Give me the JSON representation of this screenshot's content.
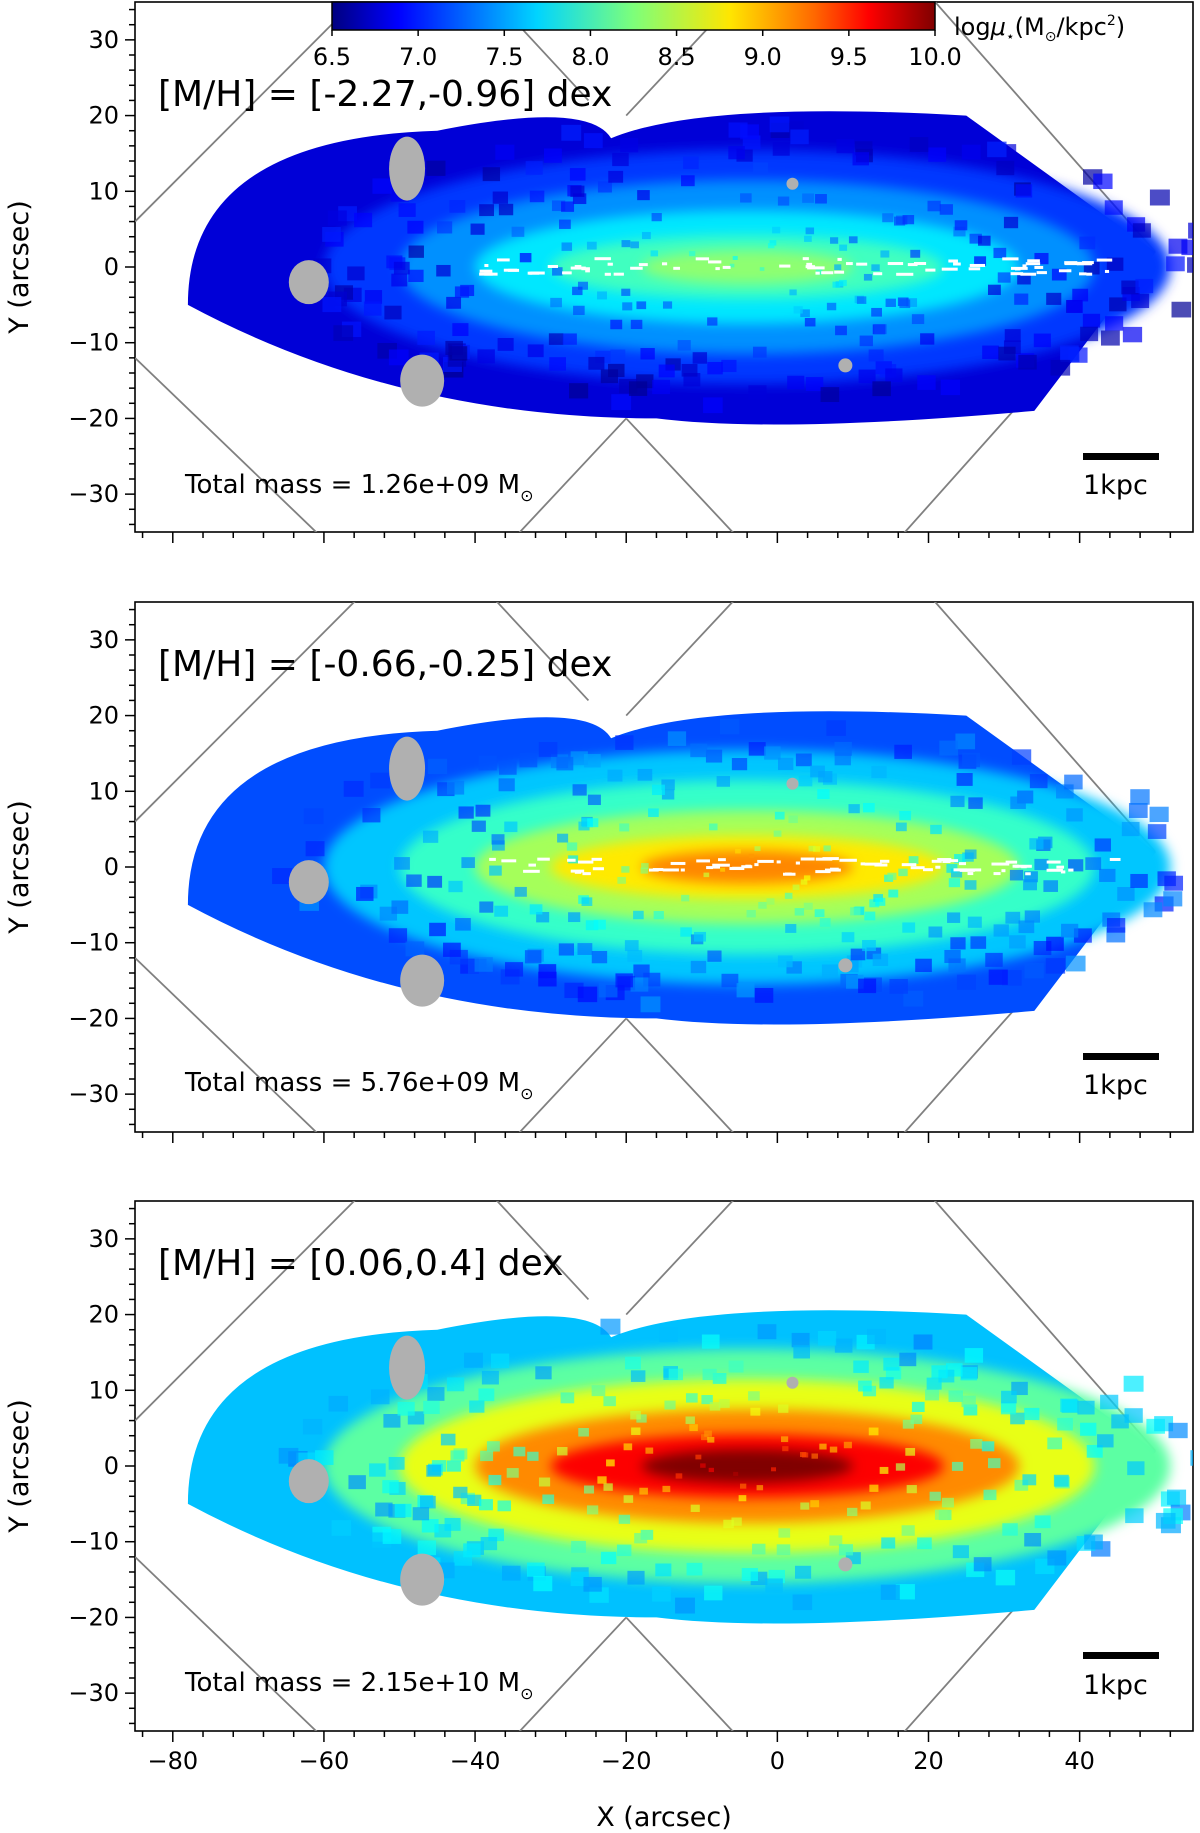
{
  "chart_data": [
    {
      "type": "heatmap",
      "title": "[M/H] = [-2.27,-0.96] dex",
      "total_mass_label": "Total mass = 1.26e+09 M",
      "total_mass_unit_symbol": "⊙",
      "scale_bar_label": "1kpc",
      "xlabel": "X (arcsec)",
      "ylabel": "Y (arcsec)",
      "xlim": [
        -85,
        55
      ],
      "ylim": [
        -35,
        35
      ],
      "xticks": [
        -80,
        -60,
        -40,
        -20,
        0,
        20,
        40
      ],
      "yticks": [
        30,
        20,
        10,
        0,
        -10,
        -20,
        -30
      ],
      "ytick_labels": [
        "30",
        "20",
        "10",
        "0",
        "−10",
        "−20",
        "−30"
      ],
      "core_log_mu": 8.3,
      "outer_log_mu": 6.8,
      "has_dust_lane_gaps": true
    },
    {
      "type": "heatmap",
      "title": "[M/H] = [-0.66,-0.25] dex",
      "total_mass_label": "Total mass = 5.76e+09 M",
      "total_mass_unit_symbol": "⊙",
      "scale_bar_label": "1kpc",
      "xlabel": "X (arcsec)",
      "ylabel": "Y (arcsec)",
      "xlim": [
        -85,
        55
      ],
      "ylim": [
        -35,
        35
      ],
      "xticks": [
        -80,
        -60,
        -40,
        -20,
        0,
        20,
        40
      ],
      "yticks": [
        30,
        20,
        10,
        0,
        -10,
        -20,
        -30
      ],
      "ytick_labels": [
        "30",
        "20",
        "10",
        "0",
        "−10",
        "−20",
        "−30"
      ],
      "core_log_mu": 9.1,
      "outer_log_mu": 7.2,
      "has_dust_lane_gaps": true
    },
    {
      "type": "heatmap",
      "title": "[M/H] = [0.06,0.4] dex",
      "total_mass_label": "Total mass = 2.15e+10 M",
      "total_mass_unit_symbol": "⊙",
      "scale_bar_label": "1kpc",
      "xlabel": "X (arcsec)",
      "ylabel": "Y (arcsec)",
      "xlim": [
        -85,
        55
      ],
      "ylim": [
        -35,
        35
      ],
      "xticks": [
        -80,
        -60,
        -40,
        -20,
        0,
        20,
        40
      ],
      "xtick_labels": [
        "−80",
        "−60",
        "−40",
        "−20",
        "0",
        "20",
        "40"
      ],
      "yticks": [
        30,
        20,
        10,
        0,
        -10,
        -20,
        -30
      ],
      "ytick_labels": [
        "30",
        "20",
        "10",
        "0",
        "−10",
        "−20",
        "−30"
      ],
      "core_log_mu": 10.0,
      "outer_log_mu": 7.6,
      "has_dust_lane_gaps": false
    }
  ],
  "colorbar": {
    "label_prefix": "log",
    "label_symbol": "μ",
    "label_sub": "⋆",
    "label_unit_open": "(M",
    "label_unit_sun": "⊙",
    "label_unit_mid": "/kpc",
    "label_unit_sup": "2",
    "label_unit_close": ")",
    "range": [
      6.5,
      10.0
    ],
    "ticks": [
      "6.5",
      "7.0",
      "7.5",
      "8.0",
      "8.5",
      "9.0",
      "9.5",
      "10.0"
    ],
    "colormap": "jet"
  },
  "colors": {
    "masked_gray": "#b0b0b0",
    "footprint_line": "#808080"
  }
}
